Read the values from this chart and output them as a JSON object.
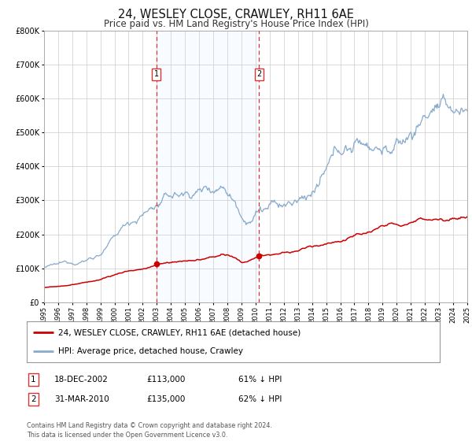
{
  "title": "24, WESLEY CLOSE, CRAWLEY, RH11 6AE",
  "subtitle": "Price paid vs. HM Land Registry's House Price Index (HPI)",
  "title_fontsize": 10.5,
  "subtitle_fontsize": 8.5,
  "background_color": "#ffffff",
  "plot_bg_color": "#ffffff",
  "grid_color": "#cccccc",
  "ylim": [
    0,
    800000
  ],
  "yticks": [
    0,
    100000,
    200000,
    300000,
    400000,
    500000,
    600000,
    700000,
    800000
  ],
  "ytick_labels": [
    "£0",
    "£100K",
    "£200K",
    "£300K",
    "£400K",
    "£500K",
    "£600K",
    "£700K",
    "£800K"
  ],
  "red_line_color": "#cc0000",
  "blue_line_color": "#88aacc",
  "sale1_year": 2002.96,
  "sale1_price": 113000,
  "sale2_year": 2010.25,
  "sale2_price": 135000,
  "vline_color": "#dd3333",
  "shade_color": "#ddeeff",
  "legend1_label": "24, WESLEY CLOSE, CRAWLEY, RH11 6AE (detached house)",
  "legend2_label": "HPI: Average price, detached house, Crawley",
  "table_row1": [
    "1",
    "18-DEC-2002",
    "£113,000",
    "61% ↓ HPI"
  ],
  "table_row2": [
    "2",
    "31-MAR-2010",
    "£135,000",
    "62% ↓ HPI"
  ],
  "footer_text": "Contains HM Land Registry data © Crown copyright and database right 2024.\nThis data is licensed under the Open Government Licence v3.0.",
  "xmin": 1995,
  "xmax": 2025
}
